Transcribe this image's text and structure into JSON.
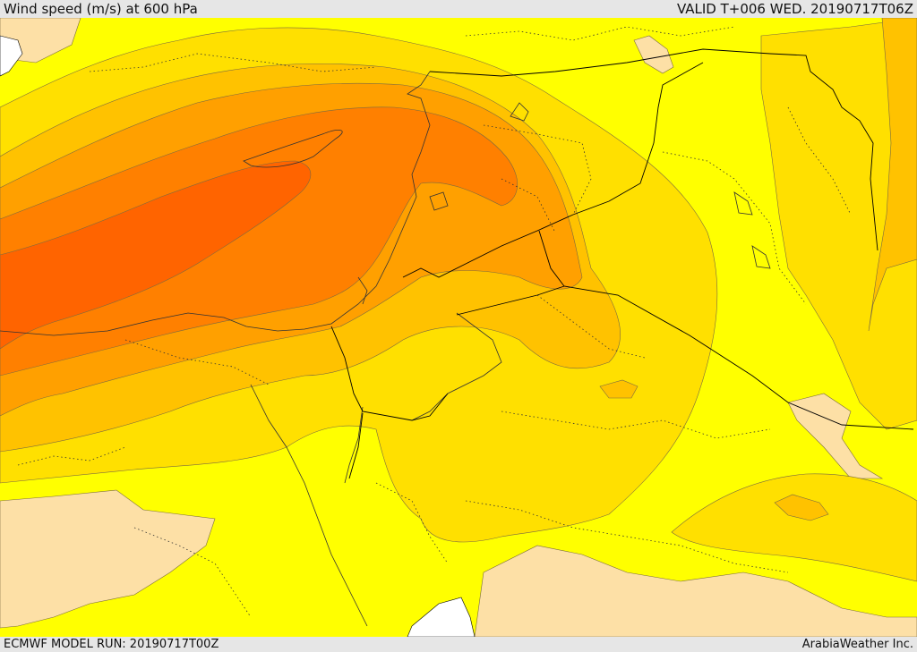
{
  "header": {
    "title": "Wind speed (m/s) at 600 hPa",
    "valid": "VALID T+006 WED. 20190717T06Z"
  },
  "footer": {
    "model_run": "ECMWF MODEL RUN: 20190717T00Z",
    "credit": "ArabiaWeather Inc."
  },
  "palette": {
    "land_low": "#fde0a6",
    "band_1": "#ffff00",
    "band_2": "#ffe000",
    "band_3": "#ffc200",
    "band_4": "#ffa000",
    "band_5": "#ff8000",
    "band_6": "#ff6400",
    "water": "#ffffff",
    "border": "#000000"
  }
}
